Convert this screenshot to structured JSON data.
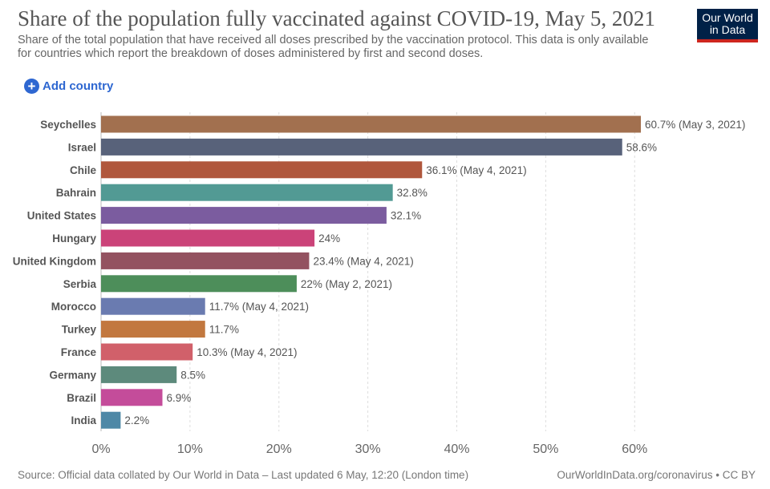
{
  "header": {
    "title": "Share of the population fully vaccinated against COVID-19, May 5, 2021",
    "subtitle": "Share of the total population that have received all doses prescribed by the vaccination protocol. This data is only available for countries which report the breakdown of doses administered by first and second doses.",
    "logo_line1": "Our World",
    "logo_line2": "in Data"
  },
  "controls": {
    "add_country_label": "Add country"
  },
  "colors": {
    "logo_bg": "#002147",
    "logo_accent": "#ce261e",
    "link": "#2e67d1"
  },
  "chart_data": {
    "type": "bar",
    "orientation": "horizontal",
    "title": "Share of the population fully vaccinated against COVID-19, May 5, 2021",
    "categories": [
      "Seychelles",
      "Israel",
      "Chile",
      "Bahrain",
      "United States",
      "Hungary",
      "United Kingdom",
      "Serbia",
      "Morocco",
      "Turkey",
      "France",
      "Germany",
      "Brazil",
      "India"
    ],
    "values": [
      60.7,
      58.6,
      36.1,
      32.8,
      32.1,
      24,
      23.4,
      22,
      11.7,
      11.7,
      10.3,
      8.5,
      6.9,
      2.2
    ],
    "value_labels": [
      "60.7% (May 3, 2021)",
      "58.6%",
      "36.1% (May 4, 2021)",
      "32.8%",
      "32.1%",
      "24%",
      "23.4% (May 4, 2021)",
      "22% (May 2, 2021)",
      "11.7% (May 4, 2021)",
      "11.7%",
      "10.3% (May 4, 2021)",
      "8.5%",
      "6.9%",
      "2.2%"
    ],
    "bar_colors": [
      "#a2704f",
      "#58627a",
      "#b0573c",
      "#529a94",
      "#7b5c9f",
      "#cb4379",
      "#935260",
      "#4d8e5a",
      "#6a7bb0",
      "#c2783f",
      "#d1606a",
      "#5d8a7c",
      "#c44c9a",
      "#4e88a6"
    ],
    "x_ticks": [
      0,
      10,
      20,
      30,
      40,
      50,
      60
    ],
    "x_tick_labels": [
      "0%",
      "10%",
      "20%",
      "30%",
      "40%",
      "50%",
      "60%"
    ],
    "xlim": [
      0,
      60.7
    ],
    "xlabel": "",
    "ylabel": "",
    "grid": true
  },
  "footer": {
    "source": "Source: Official data collated by Our World in Data – Last updated 6 May, 12:20 (London time)",
    "credit": "OurWorldInData.org/coronavirus • CC BY"
  }
}
